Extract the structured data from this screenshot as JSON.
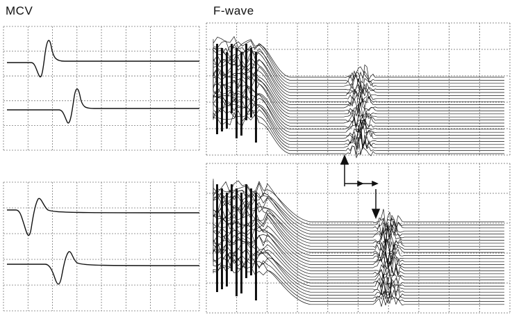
{
  "labels": {
    "mcv": "MCV",
    "fwave": "F-wave"
  }
}
